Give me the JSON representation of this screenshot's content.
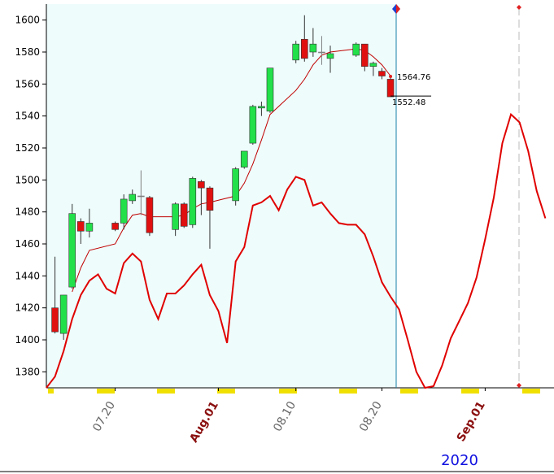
{
  "chart_data": {
    "type": "candlestick",
    "ylim": [
      1370,
      1610
    ],
    "yticks": [
      1380,
      1400,
      1420,
      1440,
      1460,
      1480,
      1500,
      1520,
      1540,
      1560,
      1580,
      1600
    ],
    "xlim": [
      12,
      71
    ],
    "xticks": [
      {
        "value": 20,
        "label": "07.20"
      },
      {
        "value": 32,
        "label": "Aug.01"
      },
      {
        "value": 41,
        "label": "08.10"
      },
      {
        "value": 51,
        "label": "08.20"
      },
      {
        "value": 63,
        "label": "Sep.01"
      }
    ],
    "x": [
      13,
      14,
      15,
      16,
      17,
      20,
      21,
      22,
      23,
      24,
      27,
      28,
      29,
      30,
      31,
      34,
      35,
      36,
      37,
      38,
      41,
      42,
      43,
      44,
      45,
      48,
      49,
      50,
      51,
      52
    ],
    "open": [
      1420,
      1404,
      1433,
      1474,
      1468,
      1473,
      1473,
      1487,
      1490,
      1489,
      1469,
      1485,
      1472,
      1499,
      1495,
      1487,
      1508,
      1523,
      1545,
      1543,
      1575,
      1588,
      1580,
      1580,
      1576,
      1578,
      1585,
      1571,
      1568,
      1563
    ],
    "high": [
      1452,
      1428,
      1485,
      1476,
      1482,
      1474,
      1491,
      1494,
      1506,
      1490,
      1486,
      1486,
      1502,
      1500,
      1496,
      1508,
      1518,
      1547,
      1549,
      1570,
      1587,
      1603,
      1595,
      1590,
      1584,
      1586,
      1585,
      1574,
      1570,
      1564
    ],
    "low": [
      1404,
      1400,
      1432,
      1460,
      1464,
      1468,
      1469,
      1485,
      1478,
      1465,
      1465,
      1470,
      1470,
      1478,
      1457,
      1484,
      1507,
      1522,
      1540,
      1542,
      1573,
      1574,
      1577,
      1572,
      1567,
      1577,
      1568,
      1565,
      1563,
      1552
    ],
    "close": [
      1405,
      1428,
      1479,
      1468,
      1473,
      1469,
      1488,
      1491,
      1490,
      1467,
      1485,
      1471,
      1501,
      1495,
      1481,
      1507,
      1518,
      1546,
      1546,
      1570,
      1585,
      1576,
      1585,
      1580,
      1579,
      1585,
      1571,
      1573,
      1565,
      1552
    ],
    "up_color": "#22e04a",
    "down_color": "#e01010",
    "flat_color": "#808080",
    "lines": [
      {
        "color": "#c00000",
        "width": 1,
        "x": [
          15,
          16,
          17,
          20,
          21,
          22,
          23,
          24,
          27,
          28,
          29,
          30,
          31,
          34,
          35,
          36,
          37,
          38,
          41,
          42,
          43,
          44,
          45,
          48,
          49,
          50,
          51,
          52
        ],
        "values": [
          1430,
          1445,
          1456,
          1460,
          1470,
          1478,
          1479,
          1477,
          1477,
          1478,
          1482,
          1485,
          1486,
          1490,
          1498,
          1510,
          1525,
          1541,
          1556,
          1563,
          1572,
          1578,
          1580,
          1582,
          1581,
          1577,
          1572,
          1565
        ]
      },
      {
        "color": "#e00000",
        "width": 2,
        "x": [
          12,
          13,
          14,
          15,
          16,
          17,
          18,
          19,
          20,
          21,
          22,
          23,
          24,
          25,
          26,
          27,
          28,
          29,
          30,
          31,
          32,
          33,
          34,
          35,
          36,
          37,
          38,
          39,
          40,
          41,
          42,
          43,
          44,
          45,
          46,
          47,
          48,
          49,
          50,
          51,
          52,
          53,
          54,
          55,
          56,
          57,
          58,
          59,
          60,
          61,
          62,
          63,
          64,
          65,
          66,
          67,
          68,
          69,
          70
        ],
        "values": [
          1370,
          1377,
          1393,
          1413,
          1428,
          1437,
          1441,
          1432,
          1429,
          1448,
          1454,
          1449,
          1425,
          1413,
          1429,
          1429,
          1434,
          1441,
          1447,
          1428,
          1418,
          1398,
          1449,
          1458,
          1484,
          1486,
          1490,
          1481,
          1494,
          1502,
          1500,
          1484,
          1486,
          1479,
          1473,
          1472,
          1472,
          1466,
          1452,
          1436,
          1427,
          1419,
          1400,
          1380,
          1370,
          1371,
          1384,
          1401,
          1412,
          1423,
          1439,
          1463,
          1489,
          1523,
          1541,
          1536,
          1518,
          1493,
          1476
        ]
      }
    ],
    "last_values": [
      1564.76,
      1552.48
    ],
    "year_label": "2020"
  }
}
